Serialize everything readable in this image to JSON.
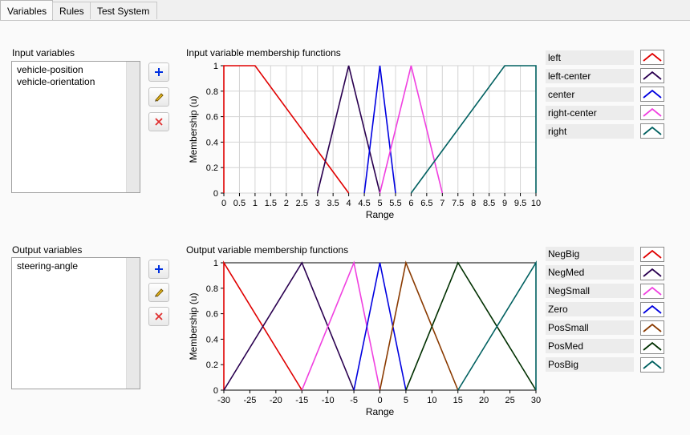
{
  "tabs": [
    {
      "label": "Variables",
      "active": true
    },
    {
      "label": "Rules",
      "active": false
    },
    {
      "label": "Test System",
      "active": false
    }
  ],
  "input_section": {
    "title": "Input variables",
    "items": [
      "vehicle-position",
      "vehicle-orientation"
    ],
    "buttons": {
      "add_icon": "plus-icon",
      "edit_icon": "pencil-icon",
      "delete_icon": "x-icon"
    }
  },
  "output_section": {
    "title": "Output variables",
    "items": [
      "steering-angle"
    ],
    "buttons": {
      "add_icon": "plus-icon",
      "edit_icon": "pencil-icon",
      "delete_icon": "x-icon"
    }
  },
  "input_chart_title": "Input variable membership functions",
  "output_chart_title": "Output variable membership functions",
  "chart_data": [
    {
      "type": "line",
      "title": "Input variable membership functions",
      "xlabel": "Range",
      "ylabel": "Membership (u)",
      "xlim": [
        0,
        10
      ],
      "ylim": [
        0,
        1
      ],
      "xticks": [
        0,
        0.5,
        1,
        1.5,
        2,
        2.5,
        3,
        3.5,
        4,
        4.5,
        5,
        5.5,
        6,
        6.5,
        7,
        7.5,
        8,
        8.5,
        9,
        9.5,
        10
      ],
      "xtick_labels": [
        "0",
        "0.5",
        "1",
        "1.5",
        "2",
        "2.5",
        "3",
        "3.5",
        "4",
        "4.5",
        "5",
        "5.5",
        "6",
        "6.5",
        "7",
        "7.5",
        "8",
        "8.5",
        "9",
        "9.5",
        "10"
      ],
      "yticks": [
        0,
        0.2,
        0.4,
        0.6,
        0.8,
        1
      ],
      "ytick_labels": [
        "0",
        "0.2",
        "0.4",
        "0.6",
        "0.8",
        "1"
      ],
      "grid": true,
      "series": [
        {
          "name": "left",
          "color": "#e00000",
          "points": [
            [
              0,
              0
            ],
            [
              0,
              1
            ],
            [
              1,
              1
            ],
            [
              4,
              0
            ]
          ]
        },
        {
          "name": "left-center",
          "color": "#2a0050",
          "points": [
            [
              3,
              0
            ],
            [
              4,
              1
            ],
            [
              5,
              0
            ]
          ]
        },
        {
          "name": "center",
          "color": "#0000e0",
          "points": [
            [
              4.5,
              0
            ],
            [
              5,
              1
            ],
            [
              5.5,
              0
            ]
          ]
        },
        {
          "name": "right-center",
          "color": "#f040e0",
          "points": [
            [
              5,
              0
            ],
            [
              6,
              1
            ],
            [
              7,
              0
            ]
          ]
        },
        {
          "name": "right",
          "color": "#006060",
          "points": [
            [
              6,
              0
            ],
            [
              9,
              1
            ],
            [
              10,
              1
            ],
            [
              10,
              0
            ]
          ]
        }
      ]
    },
    {
      "type": "line",
      "title": "Output variable membership functions",
      "xlabel": "Range",
      "ylabel": "Membership (u)",
      "xlim": [
        -30,
        30
      ],
      "ylim": [
        0,
        1
      ],
      "xticks": [
        -30,
        -25,
        -20,
        -15,
        -10,
        -5,
        0,
        5,
        10,
        15,
        20,
        25,
        30
      ],
      "xtick_labels": [
        "-30",
        "-25",
        "-20",
        "-15",
        "-10",
        "-5",
        "0",
        "5",
        "10",
        "15",
        "20",
        "25",
        "30"
      ],
      "yticks": [
        0,
        0.2,
        0.4,
        0.6,
        0.8,
        1
      ],
      "ytick_labels": [
        "0",
        "0.2",
        "0.4",
        "0.6",
        "0.8",
        "1"
      ],
      "grid": false,
      "series": [
        {
          "name": "NegBig",
          "color": "#e00000",
          "points": [
            [
              -30,
              0
            ],
            [
              -30,
              1
            ],
            [
              -15,
              0
            ]
          ]
        },
        {
          "name": "NegMed",
          "color": "#2a0050",
          "points": [
            [
              -30,
              0
            ],
            [
              -15,
              1
            ],
            [
              -5,
              0
            ]
          ]
        },
        {
          "name": "NegSmall",
          "color": "#f040e0",
          "points": [
            [
              -15,
              0
            ],
            [
              -5,
              1
            ],
            [
              0,
              0
            ]
          ]
        },
        {
          "name": "Zero",
          "color": "#0000e0",
          "points": [
            [
              -5,
              0
            ],
            [
              0,
              1
            ],
            [
              5,
              0
            ]
          ]
        },
        {
          "name": "PosSmall",
          "color": "#8a3a00",
          "points": [
            [
              0,
              0
            ],
            [
              5,
              1
            ],
            [
              15,
              0
            ]
          ]
        },
        {
          "name": "PosMed",
          "color": "#003000",
          "points": [
            [
              5,
              0
            ],
            [
              15,
              1
            ],
            [
              30,
              0
            ]
          ]
        },
        {
          "name": "PosBig",
          "color": "#006060",
          "points": [
            [
              15,
              0
            ],
            [
              30,
              1
            ],
            [
              30,
              0
            ]
          ]
        }
      ]
    }
  ]
}
